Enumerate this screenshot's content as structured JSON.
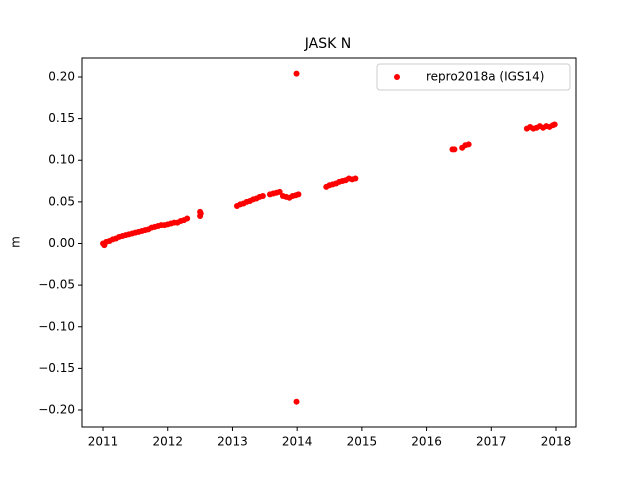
{
  "chart_data": {
    "type": "scatter",
    "title": "JASK N",
    "ylabel": "m",
    "xlim": [
      2010.675,
      2018.309
    ],
    "xticks": [
      2011,
      2012,
      2013,
      2014,
      2015,
      2016,
      2017,
      2018
    ],
    "ylim": [
      -0.2204,
      0.2228
    ],
    "yticks": [
      {
        "value": -0.2,
        "label": "−0.20"
      },
      {
        "value": -0.15,
        "label": "−0.15"
      },
      {
        "value": -0.1,
        "label": "−0.10"
      },
      {
        "value": -0.05,
        "label": "−0.05"
      },
      {
        "value": 0,
        "label": "0.00"
      },
      {
        "value": 0.05,
        "label": "0.05"
      },
      {
        "value": 0.1,
        "label": "0.10"
      },
      {
        "value": 0.15,
        "label": "0.15"
      },
      {
        "value": 0.2,
        "label": "0.20"
      }
    ],
    "legend": "upper right",
    "series": [
      {
        "name": "repro2018a (IGS14)",
        "color": "#ff0000",
        "x": [
          2011.0,
          2011.02,
          2011.05,
          2011.1,
          2011.15,
          2011.2,
          2011.25,
          2011.3,
          2011.35,
          2011.4,
          2011.45,
          2011.5,
          2011.55,
          2011.6,
          2011.65,
          2011.7,
          2011.75,
          2011.8,
          2011.85,
          2011.9,
          2011.95,
          2012.0,
          2012.05,
          2012.1,
          2012.15,
          2012.2,
          2012.25,
          2012.3,
          2012.5,
          2012.5,
          2012.51,
          2013.07,
          2013.12,
          2013.17,
          2013.22,
          2013.27,
          2013.32,
          2013.37,
          2013.42,
          2013.47,
          2013.58,
          2013.63,
          2013.68,
          2013.73,
          2013.78,
          2013.83,
          2013.88,
          2013.93,
          2013.98,
          2014.02,
          2013.99,
          2013.99,
          2014.45,
          2014.5,
          2014.55,
          2014.6,
          2014.65,
          2014.7,
          2014.75,
          2014.8,
          2014.85,
          2014.9,
          2016.4,
          2016.43,
          2016.55,
          2016.6,
          2016.65,
          2017.55,
          2017.6,
          2017.65,
          2017.7,
          2017.75,
          2017.8,
          2017.85,
          2017.9,
          2017.95,
          2017.98
        ],
        "values": [
          0.0,
          -0.002,
          0.002,
          0.003,
          0.005,
          0.006,
          0.008,
          0.009,
          0.01,
          0.011,
          0.012,
          0.013,
          0.014,
          0.015,
          0.016,
          0.017,
          0.019,
          0.02,
          0.021,
          0.022,
          0.022,
          0.023,
          0.024,
          0.025,
          0.025,
          0.027,
          0.028,
          0.03,
          0.033,
          0.038,
          0.036,
          0.045,
          0.047,
          0.048,
          0.05,
          0.051,
          0.053,
          0.054,
          0.056,
          0.057,
          0.059,
          0.06,
          0.061,
          0.062,
          0.057,
          0.056,
          0.055,
          0.057,
          0.058,
          0.059,
          0.204,
          -0.19,
          0.068,
          0.07,
          0.071,
          0.072,
          0.074,
          0.075,
          0.076,
          0.078,
          0.077,
          0.078,
          0.113,
          0.113,
          0.115,
          0.118,
          0.119,
          0.138,
          0.14,
          0.138,
          0.139,
          0.141,
          0.139,
          0.141,
          0.14,
          0.142,
          0.143
        ]
      }
    ]
  }
}
